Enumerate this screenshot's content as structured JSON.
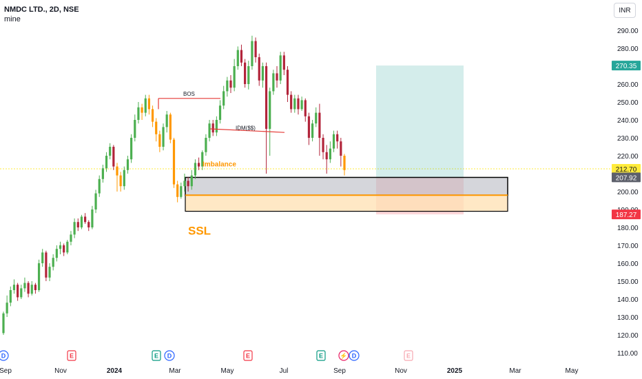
{
  "header": {
    "title": "NMDC LTD., 2D, NSE",
    "subtitle": "mine",
    "currency": "INR"
  },
  "colors": {
    "up": "#22ab94",
    "up_bright": "#4caf50",
    "down": "#b2243a",
    "imbalance": "#ff9800",
    "target_zone": "#26a69a",
    "stop_zone": "#f23645",
    "gray_zone": "#b2b5be",
    "current_price_line": "#ffeb3b",
    "bos_line": "#e53935"
  },
  "chart_data": {
    "type": "candlestick",
    "symbol": "NMDC LTD.",
    "interval": "2D",
    "exchange": "NSE",
    "y_axis": {
      "range": [
        105,
        300
      ],
      "ticks": [
        "110.00",
        "120.00",
        "130.00",
        "140.00",
        "150.00",
        "160.00",
        "170.00",
        "180.00",
        "190.00",
        "200.00",
        "210.00",
        "220.00",
        "230.00",
        "240.00",
        "250.00",
        "260.00",
        "270.00",
        "280.00",
        "290.00"
      ]
    },
    "x_axis": {
      "labels": [
        "Sep",
        "Nov",
        "2024",
        "Mar",
        "May",
        "Jul",
        "Sep",
        "Nov",
        "2025",
        "Mar",
        "May"
      ]
    },
    "price_badges": [
      {
        "value": "270.35",
        "color": "#26a69a"
      },
      {
        "value": "212.70",
        "color": "#ffeb3b"
      },
      {
        "value": "207.92",
        "color": "#5d606b"
      },
      {
        "value": "187.27",
        "color": "#f23645"
      }
    ],
    "annotations": [
      {
        "text": "BOS",
        "color": "#131722"
      },
      {
        "text": "IDM($$)",
        "color": "#131722"
      },
      {
        "text": "Imbalance",
        "color": "#ff9800"
      },
      {
        "text": "SSL",
        "color": "#ff9800"
      }
    ],
    "zones": [
      {
        "name": "gray-zone",
        "top": 207.9,
        "bottom": 198
      },
      {
        "name": "imbalance-zone",
        "top": 198,
        "bottom": 189
      },
      {
        "name": "target-zone",
        "top": 270.35,
        "bottom": 207.92
      },
      {
        "name": "stop-zone",
        "top": 207.92,
        "bottom": 187.27
      }
    ],
    "events": [
      {
        "letter": "D",
        "kind": "dividend"
      },
      {
        "letter": "E",
        "kind": "earnings"
      },
      {
        "letter": "E",
        "kind": "earnings"
      },
      {
        "letter": "D",
        "kind": "dividend"
      },
      {
        "letter": "E",
        "kind": "earnings"
      },
      {
        "letter": "E",
        "kind": "earnings"
      },
      {
        "letter": "⚡",
        "kind": "split"
      },
      {
        "letter": "D",
        "kind": "dividend"
      },
      {
        "letter": "E",
        "kind": "future-earnings"
      }
    ],
    "current_price": 212.7,
    "candles": [
      {
        "o": 121,
        "c": 132,
        "h": 133,
        "l": 120
      },
      {
        "o": 132,
        "c": 138,
        "h": 142,
        "l": 130
      },
      {
        "o": 138,
        "c": 145,
        "h": 147,
        "l": 136
      },
      {
        "o": 145,
        "c": 148,
        "h": 151,
        "l": 143
      },
      {
        "o": 148,
        "c": 141,
        "h": 149,
        "l": 139
      },
      {
        "o": 141,
        "c": 146,
        "h": 148,
        "l": 140
      },
      {
        "o": 146,
        "c": 149,
        "h": 152,
        "l": 144
      },
      {
        "o": 149,
        "c": 143,
        "h": 150,
        "l": 141
      },
      {
        "o": 143,
        "c": 148,
        "h": 150,
        "l": 142
      },
      {
        "o": 148,
        "c": 145,
        "h": 149,
        "l": 143
      },
      {
        "o": 145,
        "c": 160,
        "h": 162,
        "l": 144
      },
      {
        "o": 160,
        "c": 166,
        "h": 168,
        "l": 158
      },
      {
        "o": 166,
        "c": 152,
        "h": 167,
        "l": 150
      },
      {
        "o": 152,
        "c": 158,
        "h": 160,
        "l": 150
      },
      {
        "o": 158,
        "c": 163,
        "h": 165,
        "l": 156
      },
      {
        "o": 163,
        "c": 168,
        "h": 170,
        "l": 161
      },
      {
        "o": 168,
        "c": 170,
        "h": 172,
        "l": 165
      },
      {
        "o": 170,
        "c": 166,
        "h": 171,
        "l": 164
      },
      {
        "o": 166,
        "c": 172,
        "h": 173,
        "l": 165
      },
      {
        "o": 172,
        "c": 176,
        "h": 178,
        "l": 170
      },
      {
        "o": 176,
        "c": 183,
        "h": 185,
        "l": 174
      },
      {
        "o": 183,
        "c": 180,
        "h": 185,
        "l": 178
      },
      {
        "o": 180,
        "c": 186,
        "h": 187,
        "l": 179
      },
      {
        "o": 186,
        "c": 183,
        "h": 188,
        "l": 182
      },
      {
        "o": 183,
        "c": 180,
        "h": 184,
        "l": 178
      },
      {
        "o": 180,
        "c": 190,
        "h": 192,
        "l": 179
      },
      {
        "o": 190,
        "c": 199,
        "h": 201,
        "l": 188
      },
      {
        "o": 199,
        "c": 207,
        "h": 209,
        "l": 197
      },
      {
        "o": 207,
        "c": 213,
        "h": 215,
        "l": 205
      },
      {
        "o": 213,
        "c": 220,
        "h": 222,
        "l": 211
      },
      {
        "o": 220,
        "c": 225,
        "h": 227,
        "l": 218
      },
      {
        "o": 225,
        "c": 214,
        "h": 226,
        "l": 212
      },
      {
        "o": 214,
        "c": 209,
        "h": 216,
        "l": 200
      },
      {
        "o": 209,
        "c": 203,
        "h": 211,
        "l": 200
      },
      {
        "o": 203,
        "c": 212,
        "h": 214,
        "l": 201
      },
      {
        "o": 212,
        "c": 218,
        "h": 220,
        "l": 210
      },
      {
        "o": 218,
        "c": 230,
        "h": 232,
        "l": 216
      },
      {
        "o": 230,
        "c": 240,
        "h": 243,
        "l": 228
      },
      {
        "o": 240,
        "c": 247,
        "h": 250,
        "l": 238
      },
      {
        "o": 247,
        "c": 244,
        "h": 249,
        "l": 240
      },
      {
        "o": 244,
        "c": 252,
        "h": 254,
        "l": 242
      },
      {
        "o": 252,
        "c": 246,
        "h": 254,
        "l": 243
      },
      {
        "o": 246,
        "c": 239,
        "h": 248,
        "l": 236
      },
      {
        "o": 239,
        "c": 232,
        "h": 241,
        "l": 228
      },
      {
        "o": 232,
        "c": 225,
        "h": 234,
        "l": 222
      },
      {
        "o": 225,
        "c": 236,
        "h": 238,
        "l": 223
      },
      {
        "o": 236,
        "c": 243,
        "h": 245,
        "l": 233
      },
      {
        "o": 243,
        "c": 229,
        "h": 244,
        "l": 227
      },
      {
        "o": 229,
        "c": 204,
        "h": 230,
        "l": 202
      },
      {
        "o": 204,
        "c": 197,
        "h": 206,
        "l": 194
      },
      {
        "o": 197,
        "c": 203,
        "h": 205,
        "l": 196
      },
      {
        "o": 203,
        "c": 206,
        "h": 210,
        "l": 200
      },
      {
        "o": 206,
        "c": 203,
        "h": 208,
        "l": 200
      },
      {
        "o": 203,
        "c": 209,
        "h": 212,
        "l": 201
      },
      {
        "o": 209,
        "c": 216,
        "h": 218,
        "l": 207
      },
      {
        "o": 216,
        "c": 214,
        "h": 219,
        "l": 212
      },
      {
        "o": 214,
        "c": 222,
        "h": 223,
        "l": 212
      },
      {
        "o": 222,
        "c": 230,
        "h": 232,
        "l": 220
      },
      {
        "o": 230,
        "c": 238,
        "h": 240,
        "l": 228
      },
      {
        "o": 238,
        "c": 233,
        "h": 240,
        "l": 231
      },
      {
        "o": 233,
        "c": 240,
        "h": 242,
        "l": 231
      },
      {
        "o": 240,
        "c": 248,
        "h": 251,
        "l": 238
      },
      {
        "o": 248,
        "c": 256,
        "h": 259,
        "l": 246
      },
      {
        "o": 256,
        "c": 262,
        "h": 264,
        "l": 253
      },
      {
        "o": 262,
        "c": 258,
        "h": 265,
        "l": 255
      },
      {
        "o": 258,
        "c": 270,
        "h": 274,
        "l": 256
      },
      {
        "o": 270,
        "c": 279,
        "h": 281,
        "l": 268
      },
      {
        "o": 279,
        "c": 272,
        "h": 282,
        "l": 270
      },
      {
        "o": 272,
        "c": 260,
        "h": 274,
        "l": 258
      },
      {
        "o": 260,
        "c": 270,
        "h": 273,
        "l": 257
      },
      {
        "o": 270,
        "c": 284,
        "h": 287,
        "l": 268
      },
      {
        "o": 284,
        "c": 275,
        "h": 286,
        "l": 272
      },
      {
        "o": 275,
        "c": 262,
        "h": 277,
        "l": 259
      },
      {
        "o": 262,
        "c": 270,
        "h": 272,
        "l": 258
      },
      {
        "o": 270,
        "c": 235,
        "h": 272,
        "l": 210
      },
      {
        "o": 235,
        "c": 256,
        "h": 258,
        "l": 220
      },
      {
        "o": 256,
        "c": 266,
        "h": 268,
        "l": 254
      },
      {
        "o": 266,
        "c": 262,
        "h": 270,
        "l": 258
      },
      {
        "o": 262,
        "c": 276,
        "h": 278,
        "l": 260
      },
      {
        "o": 276,
        "c": 268,
        "h": 278,
        "l": 265
      },
      {
        "o": 268,
        "c": 254,
        "h": 270,
        "l": 250
      },
      {
        "o": 254,
        "c": 246,
        "h": 256,
        "l": 244
      },
      {
        "o": 246,
        "c": 252,
        "h": 254,
        "l": 244
      },
      {
        "o": 252,
        "c": 246,
        "h": 254,
        "l": 243
      },
      {
        "o": 246,
        "c": 251,
        "h": 253,
        "l": 245
      },
      {
        "o": 251,
        "c": 242,
        "h": 252,
        "l": 239
      },
      {
        "o": 242,
        "c": 230,
        "h": 244,
        "l": 226
      },
      {
        "o": 230,
        "c": 238,
        "h": 240,
        "l": 228
      },
      {
        "o": 238,
        "c": 244,
        "h": 247,
        "l": 236
      },
      {
        "o": 244,
        "c": 230,
        "h": 249,
        "l": 220
      },
      {
        "o": 230,
        "c": 222,
        "h": 232,
        "l": 218
      },
      {
        "o": 222,
        "c": 218,
        "h": 226,
        "l": 210
      },
      {
        "o": 218,
        "c": 224,
        "h": 228,
        "l": 216
      },
      {
        "o": 224,
        "c": 232,
        "h": 234,
        "l": 222
      },
      {
        "o": 232,
        "c": 228,
        "h": 234,
        "l": 224
      },
      {
        "o": 228,
        "c": 220,
        "h": 230,
        "l": 214
      },
      {
        "o": 220,
        "c": 212,
        "h": 221,
        "l": 209
      }
    ]
  }
}
